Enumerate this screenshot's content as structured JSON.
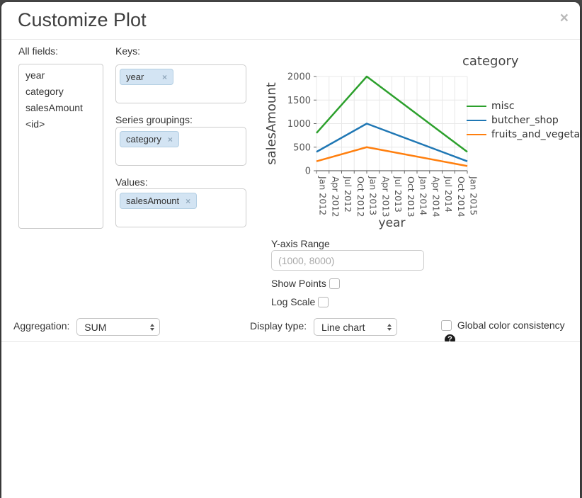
{
  "modal": {
    "title": "Customize Plot",
    "close_icon": "×"
  },
  "fields_panel": {
    "label": "All fields:",
    "items": [
      "year",
      "category",
      "salesAmount",
      "<id>"
    ]
  },
  "mappings": {
    "keys": {
      "label": "Keys:",
      "tags": [
        "year"
      ]
    },
    "series_groupings": {
      "label": "Series groupings:",
      "tags": [
        "category"
      ]
    },
    "values": {
      "label": "Values:",
      "tags": [
        "salesAmount"
      ]
    }
  },
  "chart_data": {
    "type": "line",
    "xlabel": "year",
    "ylabel": "salesAmount",
    "x_ticks": [
      "Jan 2012",
      "Apr 2012",
      "Jul 2012",
      "Oct 2012",
      "Jan 2013",
      "Apr 2013",
      "Jul 2013",
      "Oct 2013",
      "Jan 2014",
      "Apr 2014",
      "Jul 2014",
      "Oct 2014",
      "Jan 2015"
    ],
    "y_ticks": [
      0,
      500,
      1000,
      1500,
      2000
    ],
    "ylim": [
      0,
      2000
    ],
    "grid": true,
    "legend_position": "right",
    "legend_title": "category",
    "series": [
      {
        "name": "fruits_and_vegetable",
        "color": "#ff7f0e",
        "points": [
          {
            "x": "Jan 2012",
            "y": 200
          },
          {
            "x": "Jan 2013",
            "y": 500
          },
          {
            "x": "Jan 2015",
            "y": 100
          }
        ]
      },
      {
        "name": "butcher_shop",
        "color": "#1f77b4",
        "points": [
          {
            "x": "Jan 2012",
            "y": 400
          },
          {
            "x": "Jan 2013",
            "y": 1000
          },
          {
            "x": "Jan 2015",
            "y": 200
          }
        ]
      },
      {
        "name": "misc",
        "color": "#2ca02c",
        "points": [
          {
            "x": "Jan 2012",
            "y": 800
          },
          {
            "x": "Jan 2013",
            "y": 2000
          },
          {
            "x": "Jan 2015",
            "y": 400
          }
        ]
      }
    ]
  },
  "y_axis_range": {
    "label": "Y-axis Range",
    "placeholder": "(1000, 8000)",
    "value": ""
  },
  "options": {
    "show_points": {
      "label": "Show Points",
      "checked": false
    },
    "log_scale": {
      "label": "Log Scale",
      "checked": false
    }
  },
  "footer_controls": {
    "aggregation": {
      "label": "Aggregation:",
      "value": "SUM"
    },
    "display_type": {
      "label": "Display type:",
      "value": "Line chart"
    },
    "global_color": {
      "label": "Global color consistency",
      "checked": false,
      "help_icon": "?"
    }
  }
}
